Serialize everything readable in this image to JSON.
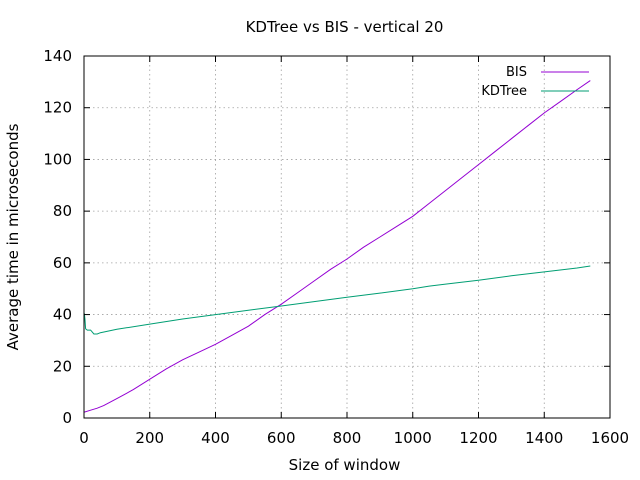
{
  "chart_data": {
    "type": "line",
    "title": "KDTree vs BIS - vertical 20",
    "xlabel": "Size of window",
    "ylabel": "Average time in microseconds",
    "xlim": [
      0,
      1600
    ],
    "ylim": [
      0,
      140
    ],
    "x_ticks": [
      "0",
      "200",
      "400",
      "600",
      "800",
      "1000",
      "1200",
      "1400",
      "1600"
    ],
    "y_ticks": [
      "0",
      "20",
      "40",
      "60",
      "80",
      "100",
      "120",
      "140"
    ],
    "grid": true,
    "legend_position": "top-right",
    "series": [
      {
        "name": "BIS",
        "color": "#9400d3",
        "x": [
          1,
          20,
          40,
          60,
          100,
          150,
          200,
          250,
          300,
          350,
          400,
          450,
          500,
          550,
          600,
          650,
          700,
          750,
          800,
          850,
          900,
          950,
          1000,
          1050,
          1100,
          1150,
          1200,
          1250,
          1300,
          1350,
          1400,
          1450,
          1500,
          1540
        ],
        "y": [
          2.3,
          3,
          3.8,
          4.8,
          7.5,
          11,
          15,
          19,
          22.5,
          25.5,
          28.5,
          32,
          35.5,
          40,
          44,
          48.5,
          53,
          57.5,
          61.5,
          66,
          70,
          74,
          78,
          83,
          88,
          93,
          98,
          103,
          108,
          113,
          118,
          122.5,
          127,
          130.5
        ]
      },
      {
        "name": "KDTree",
        "color": "#009e73",
        "x": [
          1,
          3,
          5,
          10,
          20,
          30,
          40,
          50,
          100,
          200,
          300,
          400,
          500,
          600,
          700,
          800,
          900,
          1000,
          1050,
          1100,
          1200,
          1300,
          1400,
          1500,
          1540
        ],
        "y": [
          40.5,
          38,
          34.5,
          34,
          34,
          32.5,
          32.5,
          33,
          34.3,
          36.3,
          38.3,
          40,
          41.7,
          43.3,
          45,
          46.7,
          48.3,
          50,
          51,
          51.8,
          53.3,
          55,
          56.5,
          58,
          58.8
        ]
      }
    ]
  }
}
